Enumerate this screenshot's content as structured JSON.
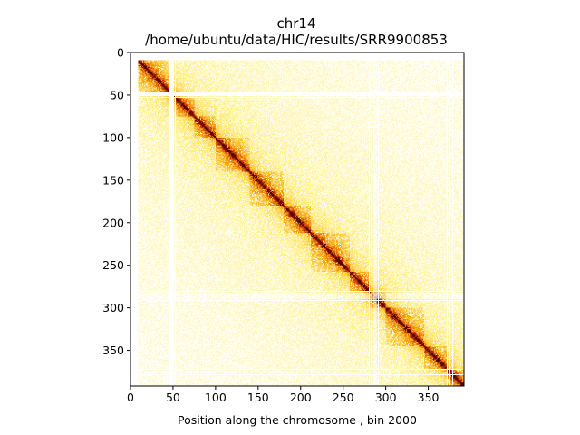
{
  "chart_data": {
    "type": "heatmap",
    "title": "chr14",
    "subtitle": "/home/ubuntu/data/HIC/results/SRR9900853",
    "xlabel": "Position along the chromosome , bin 2000",
    "ylabel": "",
    "xlim": [
      0,
      392
    ],
    "ylim": [
      392,
      0
    ],
    "x_ticks": [
      0,
      50,
      100,
      150,
      200,
      250,
      300,
      350
    ],
    "y_ticks": [
      0,
      50,
      100,
      150,
      200,
      250,
      300,
      350
    ],
    "colormap": "afmhot_r",
    "colormap_stops": [
      "#ffffff",
      "#fff08a",
      "#ffc12a",
      "#f07a00",
      "#b42400",
      "#5a0000"
    ],
    "matrix_description": "symmetric Hi-C contact matrix, intensity highest on the diagonal",
    "empty_bins": [
      0,
      1,
      2,
      3,
      4,
      5,
      6,
      7,
      8,
      46,
      47,
      48,
      49,
      50,
      52,
      280,
      283,
      286,
      288,
      291,
      372,
      375,
      378
    ],
    "diagonal_domains": [
      {
        "start": 8,
        "end": 48
      },
      {
        "start": 52,
        "end": 75
      },
      {
        "start": 75,
        "end": 100
      },
      {
        "start": 100,
        "end": 140
      },
      {
        "start": 140,
        "end": 180
      },
      {
        "start": 180,
        "end": 212
      },
      {
        "start": 212,
        "end": 258
      },
      {
        "start": 258,
        "end": 280
      },
      {
        "start": 280,
        "end": 300
      },
      {
        "start": 300,
        "end": 345
      },
      {
        "start": 345,
        "end": 372
      },
      {
        "start": 372,
        "end": 392
      }
    ]
  }
}
